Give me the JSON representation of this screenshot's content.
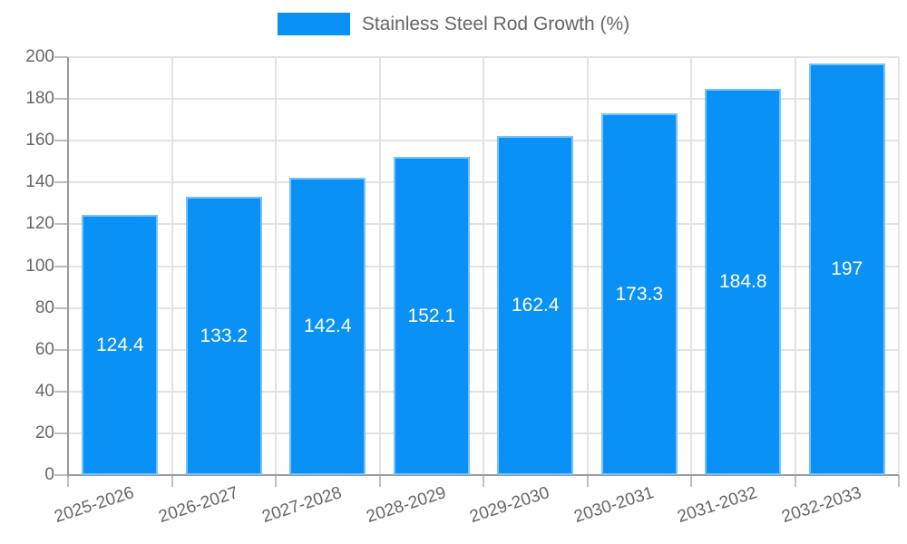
{
  "legend": {
    "label": "Stainless Steel Rod Growth (%)"
  },
  "colors": {
    "bar": "#0a91f5",
    "bar_edge": "rgba(255,255,255,0.45)",
    "value_label": "#ffffff",
    "axis_text": "#666666",
    "grid_line": "#e3e3e3",
    "axis_line": "#999999",
    "tick_mark": "#bfbfbf"
  },
  "chart_data": {
    "type": "bar",
    "title": "Stainless Steel Rod Growth (%)",
    "categories": [
      "2025-2026",
      "2026-2027",
      "2027-2028",
      "2028-2029",
      "2029-2030",
      "2030-2031",
      "2031-2032",
      "2032-2033"
    ],
    "values": [
      124.4,
      133.2,
      142.4,
      152.1,
      162.4,
      173.3,
      184.8,
      197
    ],
    "value_labels": [
      "124.4",
      "133.2",
      "142.4",
      "152.1",
      "162.4",
      "173.3",
      "184.8",
      "197"
    ],
    "xlabel": "",
    "ylabel": "",
    "ylim": [
      0,
      200
    ],
    "ytick_step": 20,
    "ytick_labels": [
      "0",
      "20",
      "40",
      "60",
      "80",
      "100",
      "120",
      "140",
      "160",
      "180",
      "200"
    ],
    "grid": true,
    "legend_position": "top",
    "bar_label_position": "center"
  }
}
